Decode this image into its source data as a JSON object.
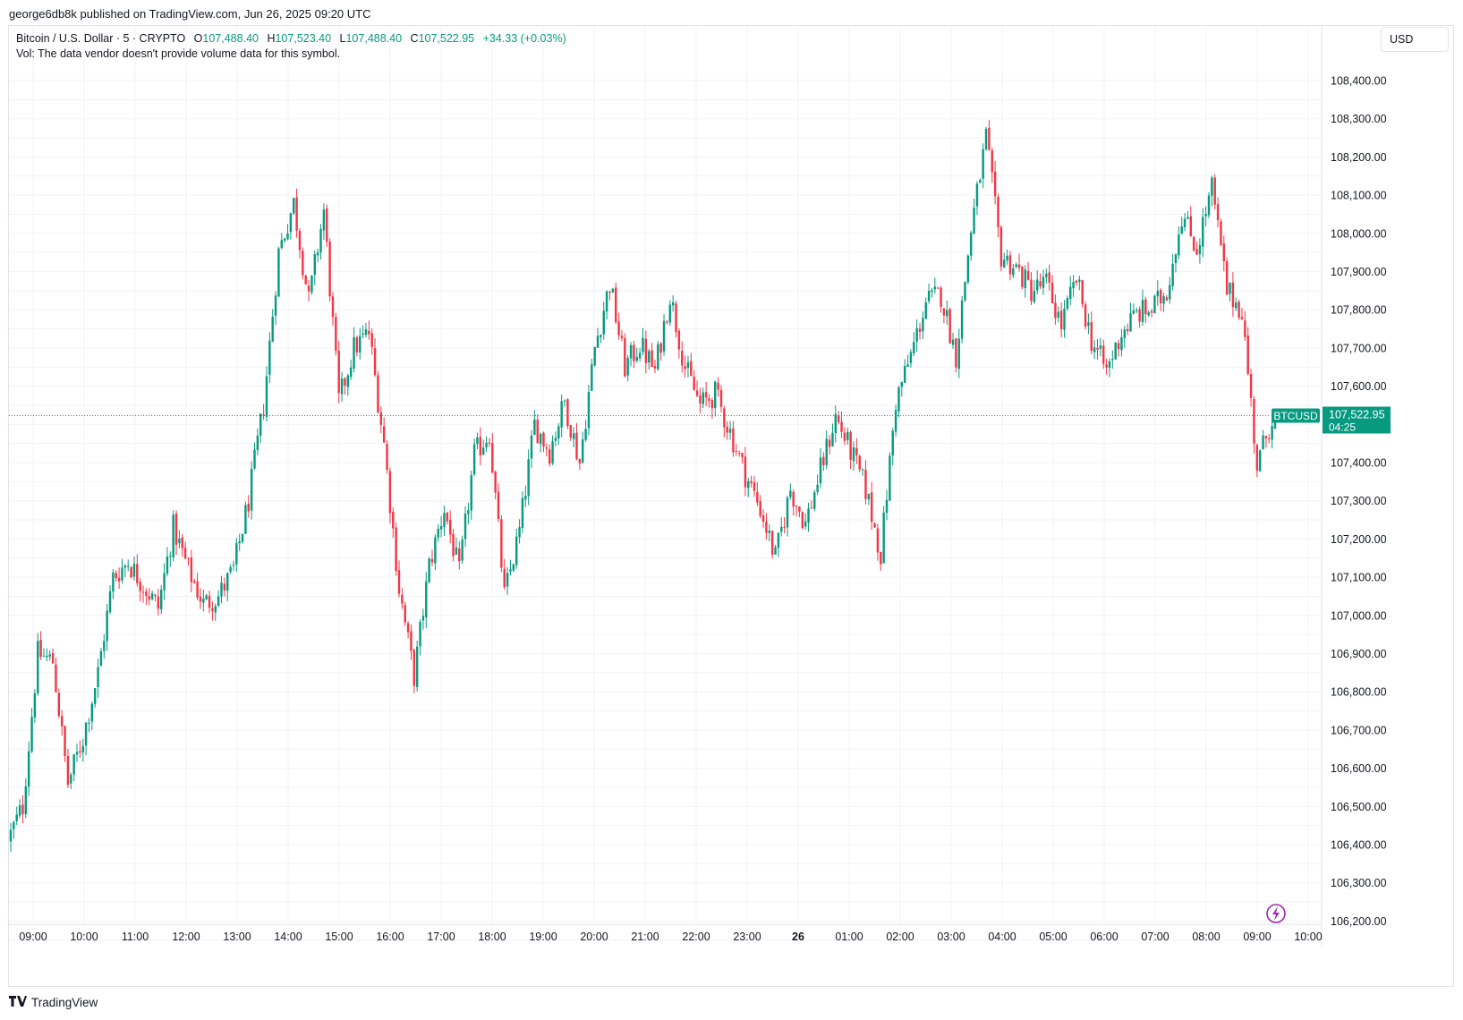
{
  "header": {
    "publisher": "george6db8k published on TradingView.com, Jun 26, 2025 09:20 UTC"
  },
  "legend": {
    "symbol": "Bitcoin / U.S. Dollar · 5 · CRYPTO",
    "o_label": "O",
    "o_value": "107,488.40",
    "h_label": "H",
    "h_value": "107,523.40",
    "l_label": "L",
    "l_value": "107,488.40",
    "c_label": "C",
    "c_value": "107,522.95",
    "change": "+34.33 (+0.03%)",
    "vol_text": "Vol: The data vendor doesn't provide volume data for this symbol."
  },
  "currency_button": "USD",
  "price_tag": {
    "ticker": "BTCUSD",
    "price": "107,522.95",
    "countdown": "04:25"
  },
  "footer": {
    "brand": "TradingView",
    "logo_icon": "tradingview-logo-icon"
  },
  "colors": {
    "up": "#089981",
    "down": "#f23645",
    "grid": "#f0f3fa",
    "bg": "#ffffff"
  },
  "chart_data": {
    "type": "candlestick",
    "title": "Bitcoin / U.S. Dollar · 5 · CRYPTO",
    "interval": "5",
    "ylim": [
      106190,
      108460
    ],
    "grid": true,
    "y_ticks": [
      "108,400.00",
      "108,300.00",
      "108,200.00",
      "108,100.00",
      "108,000.00",
      "107,900.00",
      "107,800.00",
      "107,700.00",
      "107,600.00",
      "107,500.00",
      "107,400.00",
      "107,300.00",
      "107,200.00",
      "107,100.00",
      "107,000.00",
      "106,900.00",
      "106,800.00",
      "106,700.00",
      "106,600.00",
      "106,500.00",
      "106,400.00",
      "106,300.00",
      "106,200.00"
    ],
    "y_tick_values": [
      108400,
      108300,
      108200,
      108100,
      108000,
      107900,
      107800,
      107700,
      107600,
      107500,
      107400,
      107300,
      107200,
      107100,
      107000,
      106900,
      106800,
      106700,
      106600,
      106500,
      106400,
      106300,
      106200
    ],
    "x_ticks": [
      "09:00",
      "10:00",
      "11:00",
      "12:00",
      "13:00",
      "14:00",
      "15:00",
      "16:00",
      "17:00",
      "18:00",
      "19:00",
      "20:00",
      "21:00",
      "22:00",
      "23:00",
      "26",
      "01:00",
      "02:00",
      "03:00",
      "04:00",
      "05:00",
      "06:00",
      "07:00",
      "08:00",
      "09:00",
      "10:00"
    ],
    "x_tick_bold": [
      "26"
    ],
    "last_price": 107522.95,
    "anchors_comment": "hourly closes approx; OHLC per 5-min candle generated from these anchors",
    "anchors": [
      106410,
      106500,
      106900,
      106880,
      106560,
      106680,
      106850,
      107100,
      107140,
      107080,
      107020,
      107230,
      107120,
      107030,
      107050,
      107120,
      107300,
      107550,
      107950,
      108080,
      107820,
      108060,
      107560,
      107700,
      107740,
      107450,
      107070,
      106840,
      107130,
      107280,
      107110,
      107420,
      107480,
      107050,
      107220,
      107500,
      107430,
      107560,
      107400,
      107700,
      107870,
      107650,
      107710,
      107640,
      107840,
      107650,
      107550,
      107580,
      107480,
      107370,
      107280,
      107150,
      107330,
      107240,
      107380,
      107520,
      107430,
      107330,
      107160,
      107560,
      107680,
      107820,
      107840,
      107680,
      108010,
      108250,
      107940,
      107910,
      107850,
      107870,
      107760,
      107880,
      107720,
      107640,
      107740,
      107790,
      107800,
      107850,
      108050,
      107960,
      108120,
      107850,
      107800,
      107390,
      107520
    ]
  }
}
